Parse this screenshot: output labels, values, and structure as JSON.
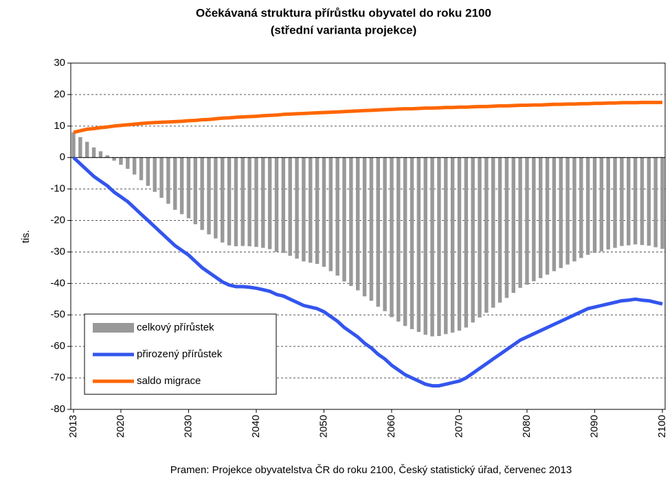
{
  "chart_data": {
    "type": "bar_line",
    "title": "Očekávaná struktura přírůstku obyvatel do roku 2100",
    "subtitle": "(střední varianta projekce)",
    "y_label": "tis.",
    "source": "Pramen: Projekce obyvatelstva ČR do roku 2100, Český statistický úřad, červenec 2013",
    "x": [
      2013,
      2014,
      2015,
      2016,
      2017,
      2018,
      2019,
      2020,
      2021,
      2022,
      2023,
      2024,
      2025,
      2026,
      2027,
      2028,
      2029,
      2030,
      2031,
      2032,
      2033,
      2034,
      2035,
      2036,
      2037,
      2038,
      2039,
      2040,
      2041,
      2042,
      2043,
      2044,
      2045,
      2046,
      2047,
      2048,
      2049,
      2050,
      2051,
      2052,
      2053,
      2054,
      2055,
      2056,
      2057,
      2058,
      2059,
      2060,
      2061,
      2062,
      2063,
      2064,
      2065,
      2066,
      2067,
      2068,
      2069,
      2070,
      2071,
      2072,
      2073,
      2074,
      2075,
      2076,
      2077,
      2078,
      2079,
      2080,
      2081,
      2082,
      2083,
      2084,
      2085,
      2086,
      2087,
      2088,
      2089,
      2090,
      2091,
      2092,
      2093,
      2094,
      2095,
      2096,
      2097,
      2098,
      2099,
      2100
    ],
    "xlim": [
      2013,
      2100
    ],
    "xticks": [
      2013,
      2020,
      2030,
      2040,
      2050,
      2060,
      2070,
      2080,
      2090,
      2100
    ],
    "ylim": [
      -80,
      30
    ],
    "yticks": [
      30,
      20,
      10,
      0,
      -10,
      -20,
      -30,
      -40,
      -50,
      -60,
      -70,
      -80
    ],
    "grid": true,
    "series": [
      {
        "name": "celkový přírůstek",
        "kind": "bar",
        "color": "#999999",
        "values": [
          8,
          6.5,
          5,
          3.2,
          2,
          0.7,
          -1,
          -2.3,
          -3.6,
          -5.4,
          -7.2,
          -9,
          -10.9,
          -12.8,
          -14.7,
          -16.6,
          -18,
          -19.3,
          -21.2,
          -23,
          -24.4,
          -25.7,
          -27,
          -27.9,
          -28.2,
          -28.1,
          -28.2,
          -28.4,
          -28.7,
          -29.1,
          -30,
          -30.3,
          -31.2,
          -32.1,
          -33,
          -33.4,
          -33.8,
          -34.7,
          -36.1,
          -37.5,
          -39.4,
          -40.8,
          -42.2,
          -44.1,
          -45.5,
          -47.4,
          -48.8,
          -50.7,
          -52.1,
          -53.5,
          -54.5,
          -55.4,
          -56.3,
          -56.8,
          -56.7,
          -56.1,
          -55.6,
          -55,
          -54,
          -52.4,
          -50.8,
          -49.3,
          -47.7,
          -46.1,
          -44.6,
          -43,
          -41.4,
          -40.4,
          -39.3,
          -38.3,
          -37.2,
          -36.1,
          -35.1,
          -34,
          -33,
          -31.9,
          -30.9,
          -30.3,
          -29.8,
          -29.2,
          -28.7,
          -28.1,
          -27.9,
          -27.6,
          -27.8,
          -28,
          -28.5,
          -29
        ]
      },
      {
        "name": "přirozený přírůstek",
        "kind": "line",
        "color": "#3355ee",
        "values": [
          0,
          -2,
          -4,
          -6,
          -7.5,
          -9,
          -11,
          -12.5,
          -14,
          -16,
          -18,
          -20,
          -22,
          -24,
          -26,
          -28,
          -29.5,
          -31,
          -33,
          -35,
          -36.5,
          -38,
          -39.5,
          -40.5,
          -41,
          -41,
          -41.2,
          -41.5,
          -42,
          -42.5,
          -43.5,
          -44,
          -45,
          -46,
          -47,
          -47.5,
          -48,
          -49,
          -50.5,
          -52,
          -54,
          -55.5,
          -57,
          -59,
          -60.5,
          -62.5,
          -64,
          -66,
          -67.5,
          -69,
          -70,
          -71,
          -72,
          -72.5,
          -72.5,
          -72,
          -71.5,
          -71,
          -70,
          -68.5,
          -67,
          -65.5,
          -64,
          -62.5,
          -61,
          -59.5,
          -58,
          -57,
          -56,
          -55,
          -54,
          -53,
          -52,
          -51,
          -50,
          -49,
          -48,
          -47.5,
          -47,
          -46.5,
          -46,
          -45.5,
          -45.3,
          -45,
          -45.3,
          -45.5,
          -46,
          -46.5
        ]
      },
      {
        "name": "saldo migrace",
        "kind": "line",
        "color": "#ff6600",
        "values": [
          8,
          8.5,
          9,
          9.2,
          9.5,
          9.7,
          10,
          10.2,
          10.4,
          10.6,
          10.8,
          11,
          11.1,
          11.2,
          11.3,
          11.4,
          11.5,
          11.7,
          11.8,
          12,
          12.1,
          12.3,
          12.5,
          12.6,
          12.8,
          12.9,
          13,
          13.1,
          13.3,
          13.4,
          13.5,
          13.7,
          13.8,
          13.9,
          14,
          14.1,
          14.2,
          14.3,
          14.4,
          14.5,
          14.6,
          14.7,
          14.8,
          14.9,
          15,
          15.1,
          15.2,
          15.3,
          15.4,
          15.5,
          15.5,
          15.6,
          15.7,
          15.7,
          15.8,
          15.9,
          15.9,
          16,
          16,
          16.1,
          16.2,
          16.2,
          16.3,
          16.4,
          16.4,
          16.5,
          16.6,
          16.6,
          16.7,
          16.7,
          16.8,
          16.9,
          16.9,
          17,
          17,
          17.1,
          17.1,
          17.2,
          17.2,
          17.3,
          17.3,
          17.4,
          17.4,
          17.4,
          17.5,
          17.5,
          17.5,
          17.5
        ]
      }
    ],
    "legend": "lower-left"
  }
}
